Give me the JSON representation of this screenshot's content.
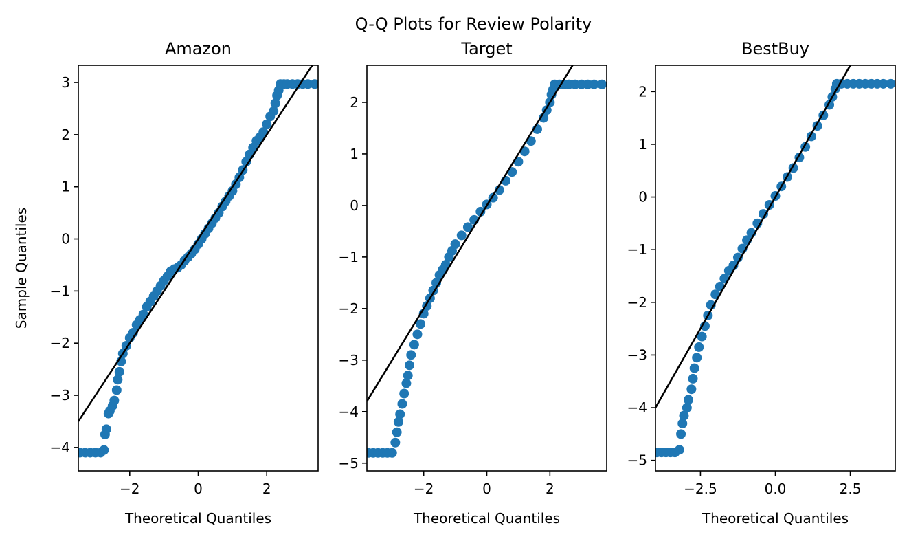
{
  "suptitle": "Q-Q Plots for Review Polarity",
  "colors": {
    "points": "#1f77b4",
    "line": "#000000",
    "axes": "#000000",
    "background": "#ffffff"
  },
  "chart_data": [
    {
      "type": "scatter",
      "title": "Amazon",
      "xlabel": "Theoretical Quantiles",
      "ylabel": "Sample Quantiles",
      "xlim": [
        -3.5,
        3.5
      ],
      "ylim": [
        -4.45,
        3.33
      ],
      "xticks": [
        -2,
        0,
        2
      ],
      "xtick_labels": [
        "−2",
        "0",
        "2"
      ],
      "yticks": [
        -4,
        -3,
        -2,
        -1,
        0,
        1,
        2,
        3
      ],
      "ytick_labels": [
        "−4",
        "−3",
        "−2",
        "−1",
        "0",
        "1",
        "2",
        "3"
      ],
      "reference_line": {
        "slope": 1.0,
        "intercept": 0.0
      },
      "points": [
        [
          -3.45,
          -4.1
        ],
        [
          -3.3,
          -4.1
        ],
        [
          -3.15,
          -4.1
        ],
        [
          -3.0,
          -4.1
        ],
        [
          -2.85,
          -4.1
        ],
        [
          -2.75,
          -4.05
        ],
        [
          -2.72,
          -3.75
        ],
        [
          -2.68,
          -3.65
        ],
        [
          -2.62,
          -3.35
        ],
        [
          -2.58,
          -3.3
        ],
        [
          -2.5,
          -3.2
        ],
        [
          -2.45,
          -3.1
        ],
        [
          -2.38,
          -2.9
        ],
        [
          -2.35,
          -2.7
        ],
        [
          -2.3,
          -2.55
        ],
        [
          -2.25,
          -2.35
        ],
        [
          -2.2,
          -2.2
        ],
        [
          -2.1,
          -2.05
        ],
        [
          -2.0,
          -1.9
        ],
        [
          -1.9,
          -1.8
        ],
        [
          -1.8,
          -1.65
        ],
        [
          -1.7,
          -1.55
        ],
        [
          -1.6,
          -1.45
        ],
        [
          -1.5,
          -1.3
        ],
        [
          -1.4,
          -1.2
        ],
        [
          -1.3,
          -1.1
        ],
        [
          -1.2,
          -1.0
        ],
        [
          -1.1,
          -0.9
        ],
        [
          -1.0,
          -0.8
        ],
        [
          -0.9,
          -0.72
        ],
        [
          -0.8,
          -0.62
        ],
        [
          -0.7,
          -0.58
        ],
        [
          -0.6,
          -0.55
        ],
        [
          -0.5,
          -0.5
        ],
        [
          -0.4,
          -0.42
        ],
        [
          -0.3,
          -0.35
        ],
        [
          -0.2,
          -0.28
        ],
        [
          -0.1,
          -0.2
        ],
        [
          0.0,
          -0.1
        ],
        [
          0.1,
          0.0
        ],
        [
          0.2,
          0.1
        ],
        [
          0.3,
          0.2
        ],
        [
          0.4,
          0.3
        ],
        [
          0.5,
          0.4
        ],
        [
          0.6,
          0.5
        ],
        [
          0.7,
          0.62
        ],
        [
          0.8,
          0.72
        ],
        [
          0.9,
          0.82
        ],
        [
          1.0,
          0.92
        ],
        [
          1.1,
          1.05
        ],
        [
          1.2,
          1.18
        ],
        [
          1.3,
          1.32
        ],
        [
          1.4,
          1.48
        ],
        [
          1.5,
          1.62
        ],
        [
          1.6,
          1.75
        ],
        [
          1.7,
          1.88
        ],
        [
          1.8,
          1.95
        ],
        [
          1.9,
          2.05
        ],
        [
          2.0,
          2.2
        ],
        [
          2.1,
          2.35
        ],
        [
          2.2,
          2.45
        ],
        [
          2.25,
          2.6
        ],
        [
          2.3,
          2.75
        ],
        [
          2.35,
          2.85
        ],
        [
          2.4,
          2.97
        ],
        [
          2.5,
          2.97
        ],
        [
          2.6,
          2.97
        ],
        [
          2.75,
          2.97
        ],
        [
          2.9,
          2.97
        ],
        [
          3.05,
          2.97
        ],
        [
          3.2,
          2.97
        ],
        [
          3.4,
          2.97
        ]
      ]
    },
    {
      "type": "scatter",
      "title": "Target",
      "xlabel": "Theoretical Quantiles",
      "ylabel": "",
      "xlim": [
        -3.8,
        3.8
      ],
      "ylim": [
        -5.15,
        2.72
      ],
      "xticks": [
        -2,
        0,
        2
      ],
      "xtick_labels": [
        "−2",
        "0",
        "2"
      ],
      "yticks": [
        -5,
        -4,
        -3,
        -2,
        -1,
        0,
        1,
        2
      ],
      "ytick_labels": [
        "−5",
        "−4",
        "−3",
        "−2",
        "−1",
        "0",
        "1",
        "2"
      ],
      "reference_line": {
        "slope": 1.0,
        "intercept": 0.0
      },
      "points": [
        [
          -3.75,
          -4.8
        ],
        [
          -3.6,
          -4.8
        ],
        [
          -3.45,
          -4.8
        ],
        [
          -3.3,
          -4.8
        ],
        [
          -3.15,
          -4.8
        ],
        [
          -3.0,
          -4.8
        ],
        [
          -2.9,
          -4.6
        ],
        [
          -2.85,
          -4.4
        ],
        [
          -2.8,
          -4.2
        ],
        [
          -2.75,
          -4.05
        ],
        [
          -2.68,
          -3.85
        ],
        [
          -2.62,
          -3.65
        ],
        [
          -2.55,
          -3.45
        ],
        [
          -2.5,
          -3.3
        ],
        [
          -2.45,
          -3.1
        ],
        [
          -2.4,
          -2.9
        ],
        [
          -2.3,
          -2.7
        ],
        [
          -2.2,
          -2.5
        ],
        [
          -2.1,
          -2.3
        ],
        [
          -2.0,
          -2.1
        ],
        [
          -1.9,
          -1.95
        ],
        [
          -1.8,
          -1.8
        ],
        [
          -1.7,
          -1.65
        ],
        [
          -1.6,
          -1.5
        ],
        [
          -1.5,
          -1.35
        ],
        [
          -1.4,
          -1.25
        ],
        [
          -1.3,
          -1.15
        ],
        [
          -1.2,
          -1.0
        ],
        [
          -1.1,
          -0.88
        ],
        [
          -1.0,
          -0.75
        ],
        [
          -0.8,
          -0.58
        ],
        [
          -0.6,
          -0.42
        ],
        [
          -0.4,
          -0.28
        ],
        [
          -0.2,
          -0.12
        ],
        [
          0.0,
          0.02
        ],
        [
          0.2,
          0.15
        ],
        [
          0.4,
          0.3
        ],
        [
          0.6,
          0.48
        ],
        [
          0.8,
          0.65
        ],
        [
          1.0,
          0.85
        ],
        [
          1.2,
          1.05
        ],
        [
          1.4,
          1.25
        ],
        [
          1.6,
          1.48
        ],
        [
          1.8,
          1.7
        ],
        [
          1.9,
          1.85
        ],
        [
          2.0,
          2.0
        ],
        [
          2.05,
          2.15
        ],
        [
          2.1,
          2.25
        ],
        [
          2.15,
          2.35
        ],
        [
          2.3,
          2.35
        ],
        [
          2.45,
          2.35
        ],
        [
          2.6,
          2.35
        ],
        [
          2.8,
          2.35
        ],
        [
          3.0,
          2.35
        ],
        [
          3.2,
          2.35
        ],
        [
          3.4,
          2.35
        ],
        [
          3.65,
          2.35
        ]
      ]
    },
    {
      "type": "scatter",
      "title": "BestBuy",
      "xlabel": "Theoretical Quantiles",
      "ylabel": "",
      "xlim": [
        -4.0,
        4.0
      ],
      "ylim": [
        -5.2,
        2.5
      ],
      "xticks": [
        -2.5,
        0.0,
        2.5
      ],
      "xtick_labels": [
        "−2.5",
        "0.0",
        "2.5"
      ],
      "yticks": [
        -5,
        -4,
        -3,
        -2,
        -1,
        0,
        1,
        2
      ],
      "ytick_labels": [
        "−5",
        "−4",
        "−3",
        "−2",
        "−1",
        "0",
        "1",
        "2"
      ],
      "reference_line": {
        "slope": 1.0,
        "intercept": 0.0
      },
      "points": [
        [
          -3.95,
          -4.85
        ],
        [
          -3.8,
          -4.85
        ],
        [
          -3.65,
          -4.85
        ],
        [
          -3.5,
          -4.85
        ],
        [
          -3.35,
          -4.85
        ],
        [
          -3.2,
          -4.8
        ],
        [
          -3.15,
          -4.5
        ],
        [
          -3.1,
          -4.3
        ],
        [
          -3.05,
          -4.15
        ],
        [
          -2.95,
          -4.0
        ],
        [
          -2.9,
          -3.85
        ],
        [
          -2.8,
          -3.65
        ],
        [
          -2.75,
          -3.45
        ],
        [
          -2.7,
          -3.25
        ],
        [
          -2.62,
          -3.05
        ],
        [
          -2.55,
          -2.85
        ],
        [
          -2.45,
          -2.65
        ],
        [
          -2.35,
          -2.45
        ],
        [
          -2.25,
          -2.25
        ],
        [
          -2.15,
          -2.05
        ],
        [
          -2.0,
          -1.85
        ],
        [
          -1.85,
          -1.7
        ],
        [
          -1.7,
          -1.55
        ],
        [
          -1.55,
          -1.4
        ],
        [
          -1.4,
          -1.3
        ],
        [
          -1.25,
          -1.15
        ],
        [
          -1.1,
          -0.98
        ],
        [
          -0.95,
          -0.82
        ],
        [
          -0.8,
          -0.68
        ],
        [
          -0.6,
          -0.5
        ],
        [
          -0.4,
          -0.32
        ],
        [
          -0.2,
          -0.15
        ],
        [
          0.0,
          0.02
        ],
        [
          0.2,
          0.2
        ],
        [
          0.4,
          0.38
        ],
        [
          0.6,
          0.55
        ],
        [
          0.8,
          0.75
        ],
        [
          1.0,
          0.95
        ],
        [
          1.2,
          1.15
        ],
        [
          1.4,
          1.35
        ],
        [
          1.6,
          1.55
        ],
        [
          1.8,
          1.75
        ],
        [
          1.9,
          1.9
        ],
        [
          2.0,
          2.05
        ],
        [
          2.05,
          2.15
        ],
        [
          2.2,
          2.15
        ],
        [
          2.4,
          2.15
        ],
        [
          2.6,
          2.15
        ],
        [
          2.8,
          2.15
        ],
        [
          3.0,
          2.15
        ],
        [
          3.2,
          2.15
        ],
        [
          3.4,
          2.15
        ],
        [
          3.6,
          2.15
        ],
        [
          3.85,
          2.15
        ]
      ]
    }
  ]
}
